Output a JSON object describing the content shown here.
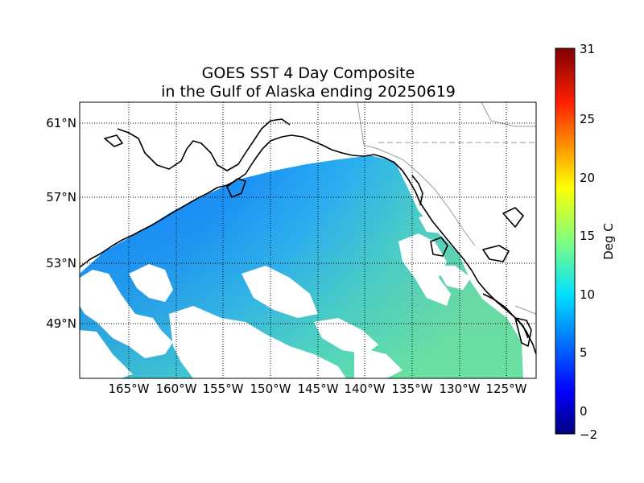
{
  "map": {
    "title_line1": "GOES SST 4 Day Composite",
    "title_line2": "in the Gulf of Alaska ending 20250619",
    "region": "Gulf of Alaska",
    "variable": "Sea surface temperature",
    "lon_labels": [
      "165°W",
      "160°W",
      "155°W",
      "150°W",
      "145°W",
      "140°W",
      "135°W",
      "130°W",
      "125°W"
    ],
    "lat_labels": [
      "61°N",
      "57°N",
      "53°N",
      "49°N"
    ],
    "gridlines": "dotted"
  },
  "colorbar": {
    "label": "Deg C",
    "ticks": [
      "31",
      "25",
      "20",
      "15",
      "10",
      "5",
      "0",
      "−2"
    ],
    "min": -2,
    "max": 31,
    "colormap": "jet",
    "colors": [
      "#00007f",
      "#0000ff",
      "#007fff",
      "#00ffff",
      "#7fff7f",
      "#ffff00",
      "#ff7f00",
      "#ff0000",
      "#7f0000"
    ]
  },
  "colors": {
    "ocean_cold": "#1a8cff",
    "ocean_mid": "#2db8ee",
    "ocean_warm": "#5fe0a0",
    "coastline": "#000000",
    "border": "#999999",
    "cloud_mask": "#ffffff"
  }
}
